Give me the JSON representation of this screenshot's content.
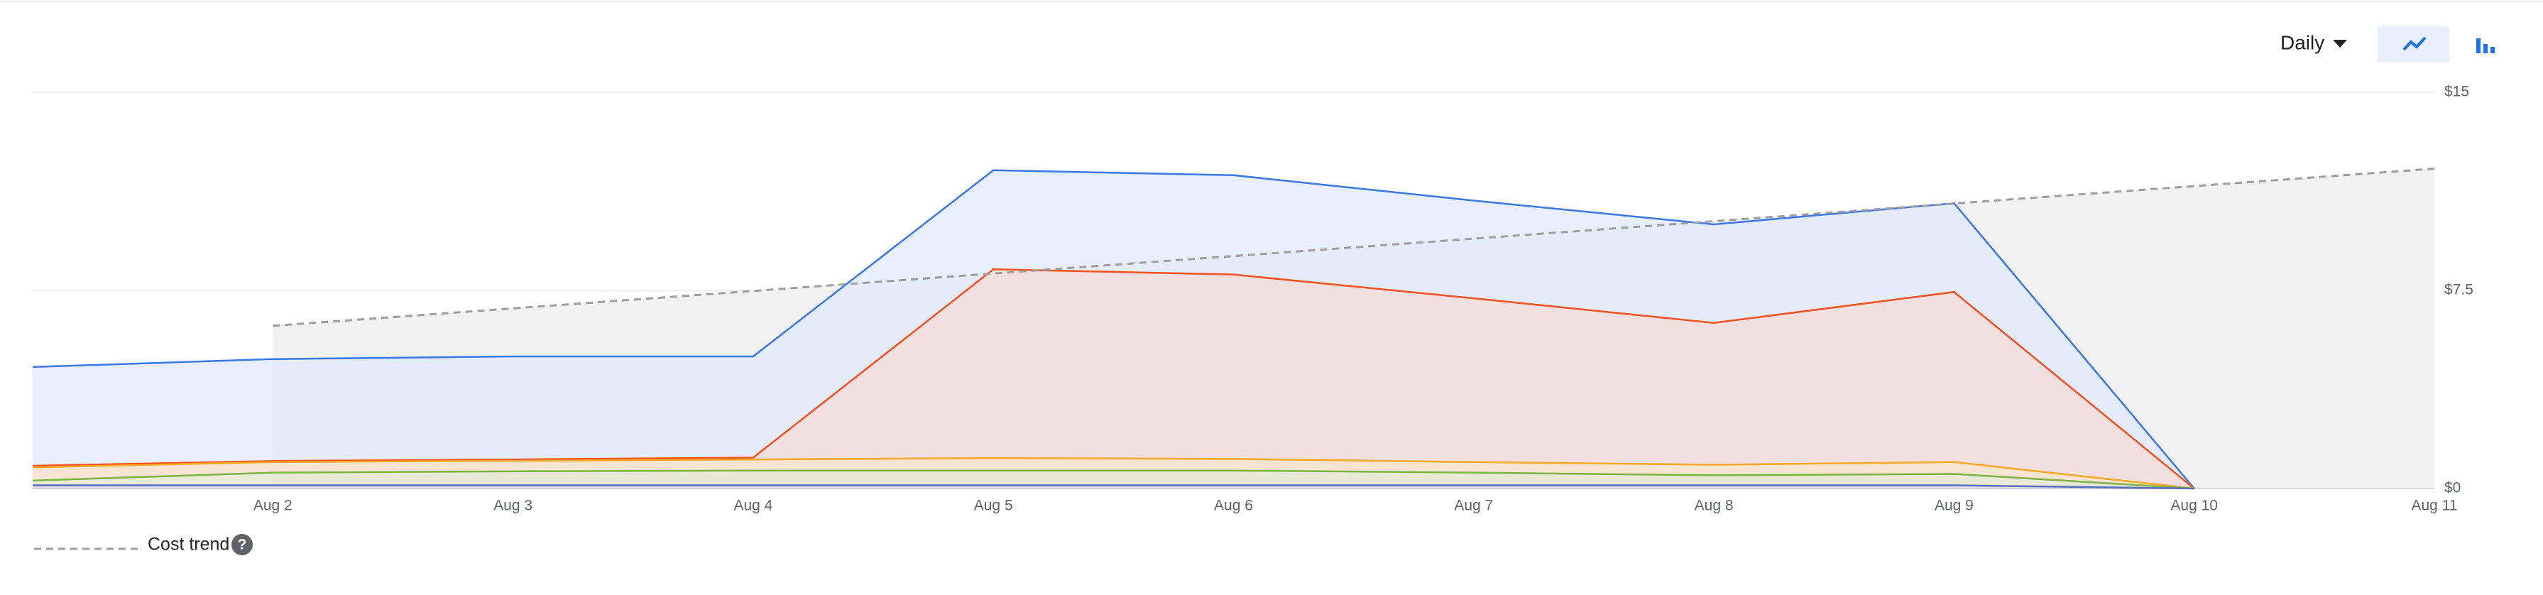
{
  "controls": {
    "granularity": "Daily"
  },
  "chart_data": {
    "type": "area",
    "categories": [
      null,
      "Aug 2",
      "Aug 3",
      "Aug 4",
      "Aug 5",
      "Aug 6",
      "Aug 7",
      "Aug 8",
      "Aug 9",
      "Aug 10",
      "Aug 11"
    ],
    "series": [
      {
        "color": "#3b78e7",
        "fill": "#dfe8fb",
        "values": [
          4.6,
          4.9,
          5.0,
          5.0,
          12.05,
          11.86,
          10.9,
          10.0,
          10.8,
          0,
          null
        ]
      },
      {
        "color": "#f4511e",
        "fill": "#f6dcd6",
        "values": [
          0.86,
          1.04,
          1.1,
          1.17,
          8.3,
          8.1,
          7.2,
          6.27,
          7.44,
          0,
          null
        ]
      },
      {
        "color": "#f9a825",
        "fill": "#f8e6cc",
        "values": [
          0.8,
          1.0,
          1.05,
          1.1,
          1.15,
          1.12,
          1.0,
          0.9,
          1.0,
          0,
          null
        ]
      },
      {
        "color": "#7cb342",
        "fill": "#e3ecd5",
        "values": [
          0.3,
          0.6,
          0.65,
          0.68,
          0.68,
          0.68,
          0.6,
          0.5,
          0.55,
          0,
          null
        ]
      },
      {
        "color": "#5c6bc0",
        "fill": "#dde0f0",
        "values": [
          0.12,
          0.12,
          0.12,
          0.12,
          0.12,
          0.12,
          0.12,
          0.12,
          0.12,
          0,
          null
        ]
      }
    ],
    "trend": {
      "name": "Cost trend",
      "color": "#9e9e9e",
      "fill": "#f1f1f1",
      "dashed": true,
      "values": [
        null,
        6.16,
        6.82,
        7.48,
        8.14,
        8.8,
        9.46,
        10.12,
        10.79,
        11.45,
        12.11
      ]
    },
    "ylim": [
      0,
      15
    ],
    "yticks": [
      {
        "value": 0,
        "label": "$0"
      },
      {
        "value": 7.5,
        "label": "$7.5"
      },
      {
        "value": 15,
        "label": "$15"
      }
    ],
    "y_axis_side": "right",
    "grid": true,
    "legend": "bottom-left"
  }
}
